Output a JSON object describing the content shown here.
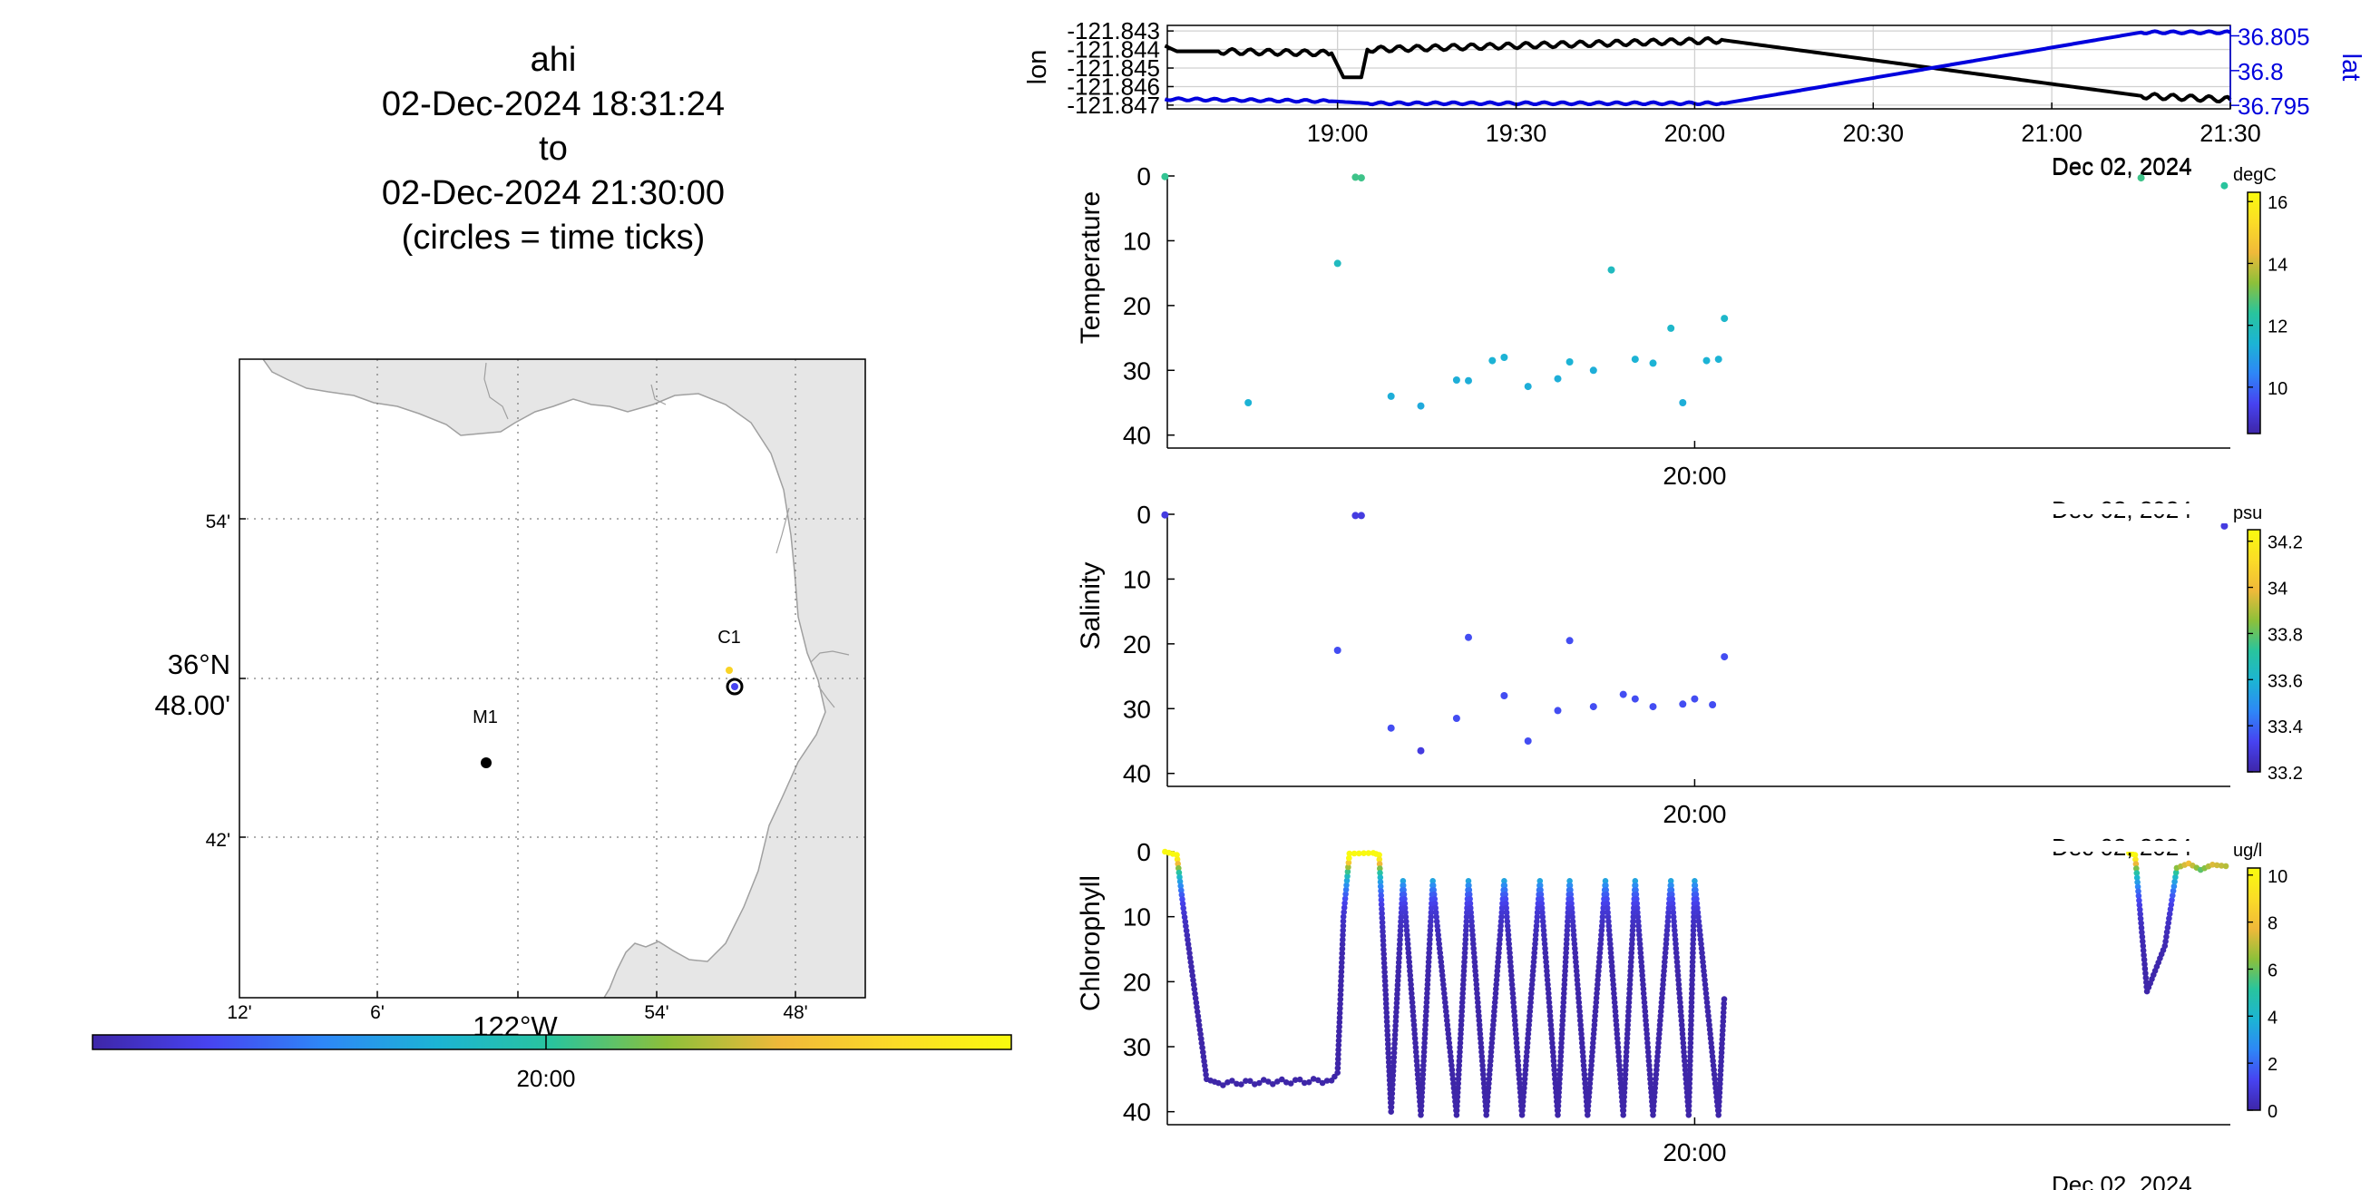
{
  "title": {
    "line1": "ahi",
    "line2": "02-Dec-2024 18:31:24",
    "line3": "to",
    "line4": "02-Dec-2024 21:30:00",
    "line5": "(circles = time ticks)"
  },
  "colors": {
    "lon_line": "#000000",
    "lat_line": "#0000dd",
    "land": "#e6e6e6",
    "colormap": [
      "#3e26a8",
      "#4743f1",
      "#2e87f7",
      "#1cb4d4",
      "#29c49d",
      "#8dc03a",
      "#f0b93a",
      "#fbdc27",
      "#f9fb0e"
    ]
  },
  "map": {
    "lat_labels": [
      "54'",
      "36°N",
      "48.00'",
      "42'"
    ],
    "lon_labels": [
      "12'",
      "6'",
      "54'",
      "48'"
    ],
    "lon_main_label": "122°W",
    "stations": [
      {
        "name": "M1",
        "lon": -122.022,
        "lat": 36.747
      },
      {
        "name": "C1",
        "lon": -121.847,
        "lat": 36.797
      }
    ],
    "colorbar_tick_label": "20:00"
  },
  "chart_data": [
    {
      "type": "line",
      "title": "",
      "xlabel": "",
      "x_tick_labels": [
        "19:00",
        "19:30",
        "20:00",
        "20:30",
        "21:00",
        "21:30"
      ],
      "date_label": "Dec 02, 2024",
      "xlim": [
        "18:31:24",
        "21:30:00"
      ],
      "y_left": {
        "label": "lon",
        "ticks": [
          "-121.843",
          "-121.844",
          "-121.845",
          "-121.846",
          "-121.847"
        ],
        "ylim": [
          -121.8472,
          -121.8427
        ]
      },
      "y_right": {
        "label": "lat",
        "ticks": [
          "36.805",
          "36.8",
          "36.795"
        ],
        "ylim": [
          36.7945,
          36.8065
        ]
      },
      "series": [
        {
          "name": "lon",
          "axis": "left",
          "color": "#000000",
          "points": [
            [
              "18:31",
              -121.8438
            ],
            [
              "18:33",
              -121.8441
            ],
            [
              "18:40",
              -121.8441
            ],
            [
              "18:59",
              -121.8442
            ],
            [
              "19:01",
              -121.8455
            ],
            [
              "19:04",
              -121.8455
            ],
            [
              "19:05",
              -121.844
            ],
            [
              "20:05",
              -121.8435
            ],
            [
              "21:15",
              -121.8465
            ],
            [
              "21:30",
              -121.8467
            ]
          ]
        },
        {
          "name": "lat",
          "axis": "right",
          "color": "#0000dd",
          "points": [
            [
              "18:31",
              36.7959
            ],
            [
              "18:59",
              36.7956
            ],
            [
              "19:05",
              36.7953
            ],
            [
              "20:05",
              36.7953
            ],
            [
              "21:15",
              36.8055
            ],
            [
              "21:30",
              36.8055
            ]
          ]
        }
      ]
    },
    {
      "type": "scatter",
      "title": "",
      "ylabel": "Temperature",
      "unit_label": "degC",
      "x_tick_labels": [
        "20:00"
      ],
      "date_label": "Dec 02, 2024",
      "ylim": [
        0,
        42
      ],
      "y_ticks": [
        "0",
        "10",
        "20",
        "30",
        "40"
      ],
      "colorbar_ticks": [
        "10",
        "12",
        "14",
        "16"
      ],
      "colorbar_range": [
        8.5,
        16.3
      ],
      "points": [
        [
          "18:31",
          0.1,
          12.5
        ],
        [
          "18:45",
          35,
          11.4
        ],
        [
          "19:00",
          13.5,
          11.8
        ],
        [
          "19:03",
          0.2,
          12.6
        ],
        [
          "19:04",
          0.3,
          12.6
        ],
        [
          "19:09",
          34,
          11.3
        ],
        [
          "19:14",
          35.5,
          11.2
        ],
        [
          "19:20",
          31.5,
          11.3
        ],
        [
          "19:22",
          31.6,
          11.3
        ],
        [
          "19:26",
          28.5,
          11.4
        ],
        [
          "19:28",
          28,
          11.4
        ],
        [
          "19:32",
          32.5,
          11.3
        ],
        [
          "19:37",
          31.3,
          11.3
        ],
        [
          "19:39",
          28.7,
          11.4
        ],
        [
          "19:43",
          30,
          11.3
        ],
        [
          "19:46",
          14.5,
          11.8
        ],
        [
          "19:50",
          28.3,
          11.4
        ],
        [
          "19:53",
          28.9,
          11.4
        ],
        [
          "19:56",
          23.5,
          11.6
        ],
        [
          "19:58",
          35,
          11.3
        ],
        [
          "20:02",
          28.5,
          11.4
        ],
        [
          "20:04",
          28.3,
          11.4
        ],
        [
          "20:05",
          22,
          11.6
        ],
        [
          "21:15",
          0.3,
          12.6
        ],
        [
          "21:29",
          1.5,
          12.4
        ]
      ]
    },
    {
      "type": "scatter",
      "title": "",
      "ylabel": "Salinity",
      "unit_label": "psu",
      "x_tick_labels": [
        "20:00"
      ],
      "date_label": "Dec 02, 2024",
      "ylim": [
        0,
        42
      ],
      "y_ticks": [
        "0",
        "10",
        "20",
        "30",
        "40"
      ],
      "colorbar_ticks": [
        "33.2",
        "33.4",
        "33.6",
        "33.8",
        "34",
        "34.2"
      ],
      "colorbar_range": [
        33.2,
        34.25
      ],
      "points": [
        [
          "18:31",
          0.1,
          33.3
        ],
        [
          "19:00",
          21,
          33.35
        ],
        [
          "19:03",
          0.2,
          33.3
        ],
        [
          "19:04",
          0.2,
          33.3
        ],
        [
          "19:09",
          33,
          33.35
        ],
        [
          "19:14",
          36.5,
          33.3
        ],
        [
          "19:20",
          31.5,
          33.35
        ],
        [
          "19:22",
          19,
          33.35
        ],
        [
          "19:28",
          28,
          33.35
        ],
        [
          "19:32",
          35,
          33.35
        ],
        [
          "19:37",
          30.3,
          33.35
        ],
        [
          "19:39",
          19.5,
          33.35
        ],
        [
          "19:43",
          29.7,
          33.35
        ],
        [
          "19:48",
          27.8,
          33.35
        ],
        [
          "19:50",
          28.5,
          33.35
        ],
        [
          "19:53",
          29.7,
          33.35
        ],
        [
          "19:58",
          29.3,
          33.35
        ],
        [
          "20:00",
          28.5,
          33.35
        ],
        [
          "20:03",
          29.4,
          33.35
        ],
        [
          "20:05",
          22,
          33.35
        ],
        [
          "21:15",
          0.4,
          33.3
        ],
        [
          "21:29",
          1.8,
          33.3
        ]
      ]
    },
    {
      "type": "scatter",
      "title": "",
      "ylabel": "Chlorophyll",
      "unit_label": "ug/l",
      "x_tick_labels": [
        "20:00"
      ],
      "date_label": "Dec 02, 2024",
      "ylim": [
        0,
        42
      ],
      "y_ticks": [
        "0",
        "10",
        "20",
        "30",
        "40"
      ],
      "colorbar_ticks": [
        "0",
        "2",
        "4",
        "6",
        "8",
        "10"
      ],
      "colorbar_range": [
        0,
        10.3
      ],
      "profile_points": [
        [
          "18:31",
          0
        ],
        [
          "18:33",
          0.5
        ],
        [
          "18:34",
          8
        ],
        [
          "18:38",
          35
        ],
        [
          "18:40",
          35.6
        ],
        [
          "18:59",
          35.2
        ],
        [
          "19:00",
          34
        ],
        [
          "19:01",
          10
        ],
        [
          "19:02",
          0.3
        ],
        [
          "19:06",
          0.2
        ],
        [
          "19:07",
          0.5
        ],
        [
          "19:09",
          40
        ],
        [
          "19:11",
          4.5
        ],
        [
          "19:14",
          40.5
        ],
        [
          "19:16",
          4.5
        ],
        [
          "19:20",
          40.5
        ],
        [
          "19:22",
          4.5
        ],
        [
          "19:25",
          40.5
        ],
        [
          "19:28",
          4.5
        ],
        [
          "19:31",
          40.5
        ],
        [
          "19:34",
          4.5
        ],
        [
          "19:37",
          40.5
        ],
        [
          "19:39",
          4.5
        ],
        [
          "19:42",
          40.5
        ],
        [
          "19:45",
          4.5
        ],
        [
          "19:48",
          40.5
        ],
        [
          "19:50",
          4.5
        ],
        [
          "19:53",
          40.5
        ],
        [
          "19:56",
          4.5
        ],
        [
          "19:59",
          40.5
        ],
        [
          "20:00",
          4.5
        ],
        [
          "20:04",
          40.5
        ],
        [
          "20:05",
          22
        ],
        [
          "21:13",
          0.2
        ],
        [
          "21:14",
          0.5
        ],
        [
          "21:16",
          21.5
        ],
        [
          "21:19",
          14.5
        ],
        [
          "21:21",
          2.5
        ],
        [
          "21:23",
          1.8
        ],
        [
          "21:25",
          2.8
        ],
        [
          "21:27",
          2
        ],
        [
          "21:30",
          2.3
        ]
      ]
    }
  ]
}
